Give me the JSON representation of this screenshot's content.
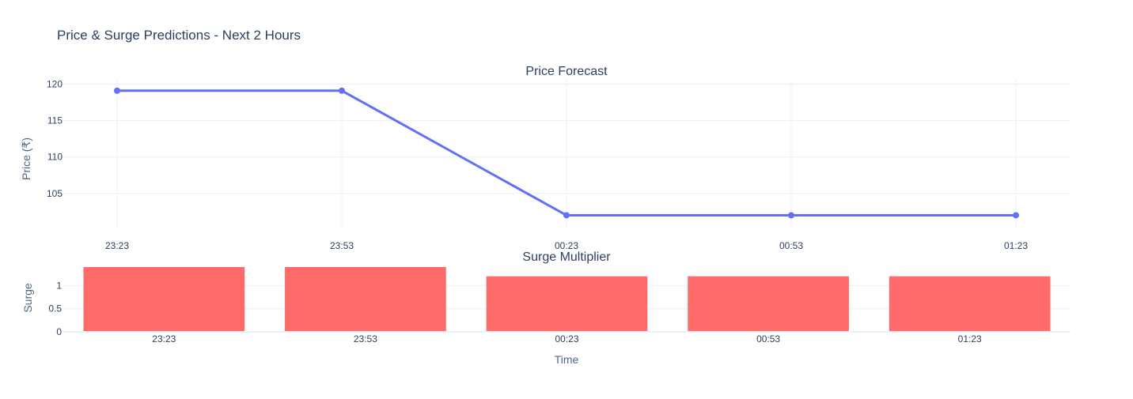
{
  "title": "Price & Surge Predictions - Next 2 Hours",
  "chart_data": [
    {
      "type": "line",
      "title": "Price Forecast",
      "xlabel": "",
      "ylabel": "Price (₹)",
      "categories": [
        "23:23",
        "23:53",
        "00:23",
        "00:53",
        "01:23"
      ],
      "values": [
        119.1,
        119.1,
        102,
        102,
        102
      ],
      "ylim": [
        100.1,
        120.7
      ],
      "yticks": [
        105,
        110,
        115,
        120
      ],
      "grid": true,
      "color": "#636efa"
    },
    {
      "type": "bar",
      "title": "Surge Multiplier",
      "xlabel": "Time",
      "ylabel": "Surge",
      "categories": [
        "23:23",
        "23:53",
        "00:23",
        "00:53",
        "01:23"
      ],
      "values": [
        1.4,
        1.4,
        1.2,
        1.2,
        1.2
      ],
      "ylim": [
        0,
        1.4
      ],
      "yticks": [
        0,
        0.5,
        1
      ],
      "grid": true,
      "color": "#ff6b6b"
    }
  ]
}
